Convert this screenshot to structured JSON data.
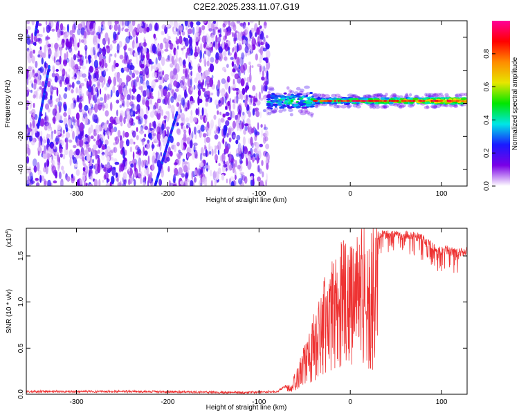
{
  "title": "C2E2.2025.233.11.07.G19",
  "chart_data": [
    {
      "type": "heatmap",
      "name": "spectrogram",
      "xlabel": "Height of straight line (km)",
      "ylabel": "Frequency (Hz)",
      "xlim": [
        -355,
        128
      ],
      "ylim": [
        -50,
        50
      ],
      "xticks": [
        -300,
        -200,
        -100,
        0,
        100
      ],
      "xtick_labels": [
        "-300",
        "-200",
        "-100",
        "0",
        "100"
      ],
      "yticks": [
        -40,
        -20,
        0,
        20,
        40
      ],
      "ytick_labels": [
        "-40",
        "-20",
        "0",
        "20",
        "40"
      ],
      "noise_region": [
        -355,
        -90
      ],
      "signal_band": {
        "x_start": -90,
        "x_end": 128,
        "center_hz": 1.5,
        "width_hz": 6
      },
      "streaks": [
        {
          "x": [
            -342,
            -330
          ],
          "y": [
            -14,
            22
          ]
        },
        {
          "x": [
            -214,
            -190
          ],
          "y": [
            -50,
            -6
          ]
        },
        {
          "x": [
            -345,
            -340
          ],
          "y": [
            42,
            58
          ]
        }
      ],
      "colorbar": {
        "label": "Normalized spectral amplitude",
        "range": [
          0,
          1
        ],
        "ticks": [
          0.0,
          0.2,
          0.4,
          0.6,
          0.8
        ],
        "tick_labels": [
          "0.0",
          "0.2",
          "0.4",
          "0.6",
          "0.8"
        ],
        "colors": [
          "#ffffff",
          "#7a00e6",
          "#1a1aff",
          "#00e6e6",
          "#00e600",
          "#e6e600",
          "#ff8c00",
          "#ff0000",
          "#ff0099"
        ]
      }
    },
    {
      "type": "line",
      "name": "snr",
      "xlabel": "Height of straight line (km)",
      "ylabel": "SNR (10 * v/v)",
      "multiplier_label": "(x10",
      "multiplier_exp": "4",
      "multiplier_close": ")",
      "xlim": [
        -355,
        128
      ],
      "ylim": [
        0,
        1.8
      ],
      "xticks": [
        -300,
        -200,
        -100,
        0,
        100
      ],
      "xtick_labels": [
        "-300",
        "-200",
        "-100",
        "0",
        "100"
      ],
      "yticks": [
        0.0,
        0.5,
        1.0,
        1.5
      ],
      "ytick_labels": [
        "0.0",
        "0.5",
        "1.0",
        "1.5"
      ],
      "color": "#ee3333",
      "envelope_x": [
        -355,
        -250,
        -120,
        -80,
        -65,
        -55,
        -45,
        -35,
        -25,
        -15,
        -5,
        5,
        15,
        25,
        35,
        45,
        55,
        65,
        75,
        85,
        95,
        105,
        115,
        128
      ],
      "envelope_y": [
        0.03,
        0.03,
        0.02,
        0.03,
        0.12,
        0.35,
        0.65,
        0.95,
        1.25,
        1.45,
        1.55,
        1.62,
        1.72,
        1.76,
        1.78,
        1.78,
        1.79,
        1.78,
        1.75,
        1.7,
        1.6,
        1.62,
        1.58,
        1.6
      ]
    }
  ]
}
